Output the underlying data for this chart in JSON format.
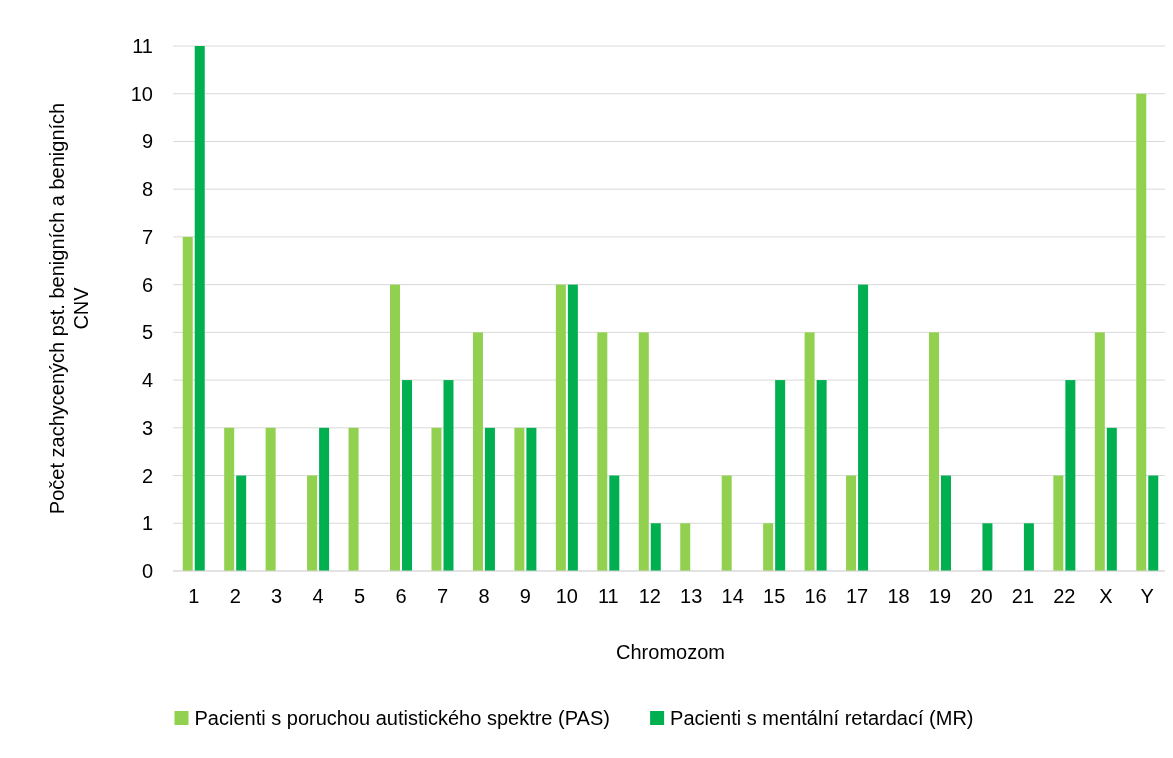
{
  "chart_data": {
    "type": "bar",
    "xlabel": "Chromozom",
    "ylabel": "Počet zachycených pst. benigních a benigních CNV",
    "categories": [
      "1",
      "2",
      "3",
      "4",
      "5",
      "6",
      "7",
      "8",
      "9",
      "10",
      "11",
      "12",
      "13",
      "14",
      "15",
      "16",
      "17",
      "18",
      "19",
      "20",
      "21",
      "22",
      "X",
      "Y"
    ],
    "series": [
      {
        "name": "Pacienti s poruchou autistického spektre (PAS)",
        "color": "#92d050",
        "values": [
          7,
          3,
          3,
          2,
          3,
          6,
          3,
          5,
          3,
          6,
          5,
          5,
          1,
          2,
          1,
          5,
          2,
          0,
          5,
          0,
          0,
          2,
          5,
          10
        ]
      },
      {
        "name": "Pacienti s mentální retardací (MR)",
        "color": "#00b050",
        "values": [
          11,
          2,
          0,
          3,
          0,
          4,
          4,
          3,
          3,
          6,
          2,
          1,
          0,
          0,
          4,
          4,
          6,
          0,
          2,
          1,
          1,
          4,
          3,
          2
        ]
      }
    ],
    "ylim": [
      0,
      11
    ],
    "yticks": [
      0,
      1,
      2,
      3,
      4,
      5,
      6,
      7,
      8,
      9,
      10,
      11
    ],
    "grid": "y",
    "legend": "bottom"
  }
}
